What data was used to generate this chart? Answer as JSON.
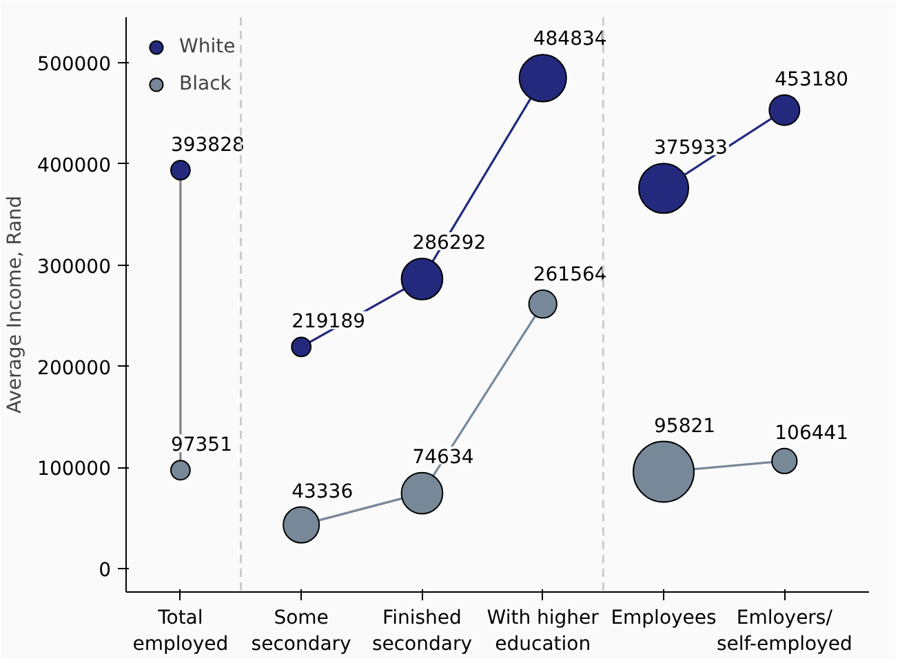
{
  "chart_data": {
    "type": "bubble",
    "ylabel": "Average Income, Rand",
    "categories": [
      "Total\nemployed",
      "Some\nsecondary",
      "Finished\nsecondary",
      "With higher\neducation",
      "Employees",
      "Emloyers/\nself-employed"
    ],
    "ylim": [
      -23000,
      545000
    ],
    "yticks": [
      0,
      100000,
      200000,
      300000,
      400000,
      500000
    ],
    "series": [
      {
        "name": "White",
        "color": "#232a7e",
        "values": [
          393828,
          219189,
          286292,
          484834,
          375933,
          453180
        ],
        "sizes": [
          0.1,
          0.1,
          0.46,
          0.6,
          0.67,
          0.25
        ]
      },
      {
        "name": "Black",
        "color": "#778899",
        "values": [
          97351,
          43336,
          74634,
          261564,
          95821,
          106441
        ],
        "sizes": [
          0.1,
          0.35,
          0.46,
          0.21,
          1,
          0.17
        ]
      }
    ],
    "data_labels": true,
    "legend": "top left",
    "marker": "circle",
    "grid": false
  }
}
